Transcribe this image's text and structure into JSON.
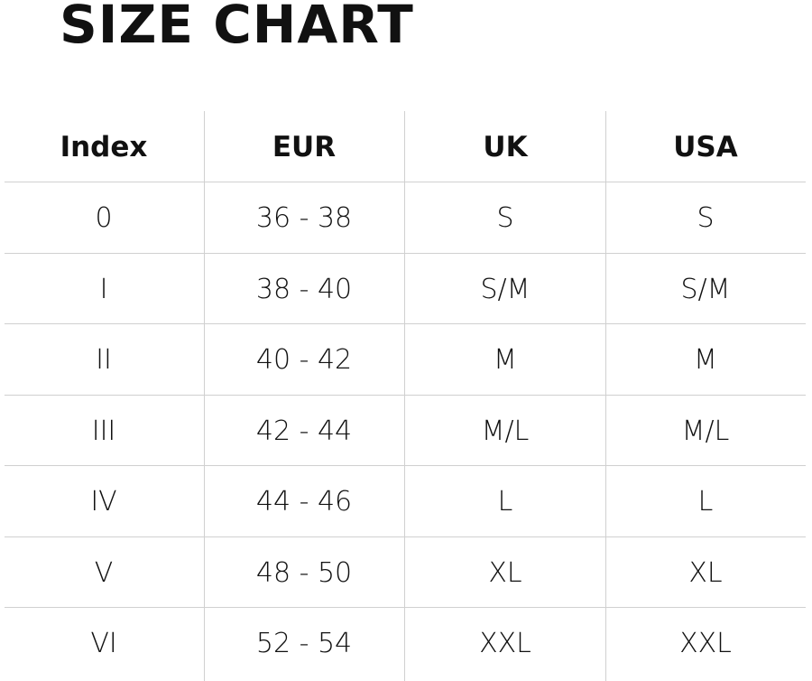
{
  "title": "SIZE CHART",
  "chart_data": {
    "type": "table",
    "title": "SIZE CHART",
    "columns": [
      "Index",
      "EUR",
      "UK",
      "USA"
    ],
    "rows": [
      [
        "0",
        "36 - 38",
        "S",
        "S"
      ],
      [
        "I",
        "38 - 40",
        "S/M",
        "S/M"
      ],
      [
        "II",
        "40 - 42",
        "M",
        "M"
      ],
      [
        "III",
        "42 - 44",
        "M/L",
        "M/L"
      ],
      [
        "IV",
        "44 - 46",
        "L",
        "L"
      ],
      [
        "V",
        "48 - 50",
        "XL",
        "XL"
      ],
      [
        "VI",
        "52 - 54",
        "XXL",
        "XXL"
      ]
    ]
  }
}
